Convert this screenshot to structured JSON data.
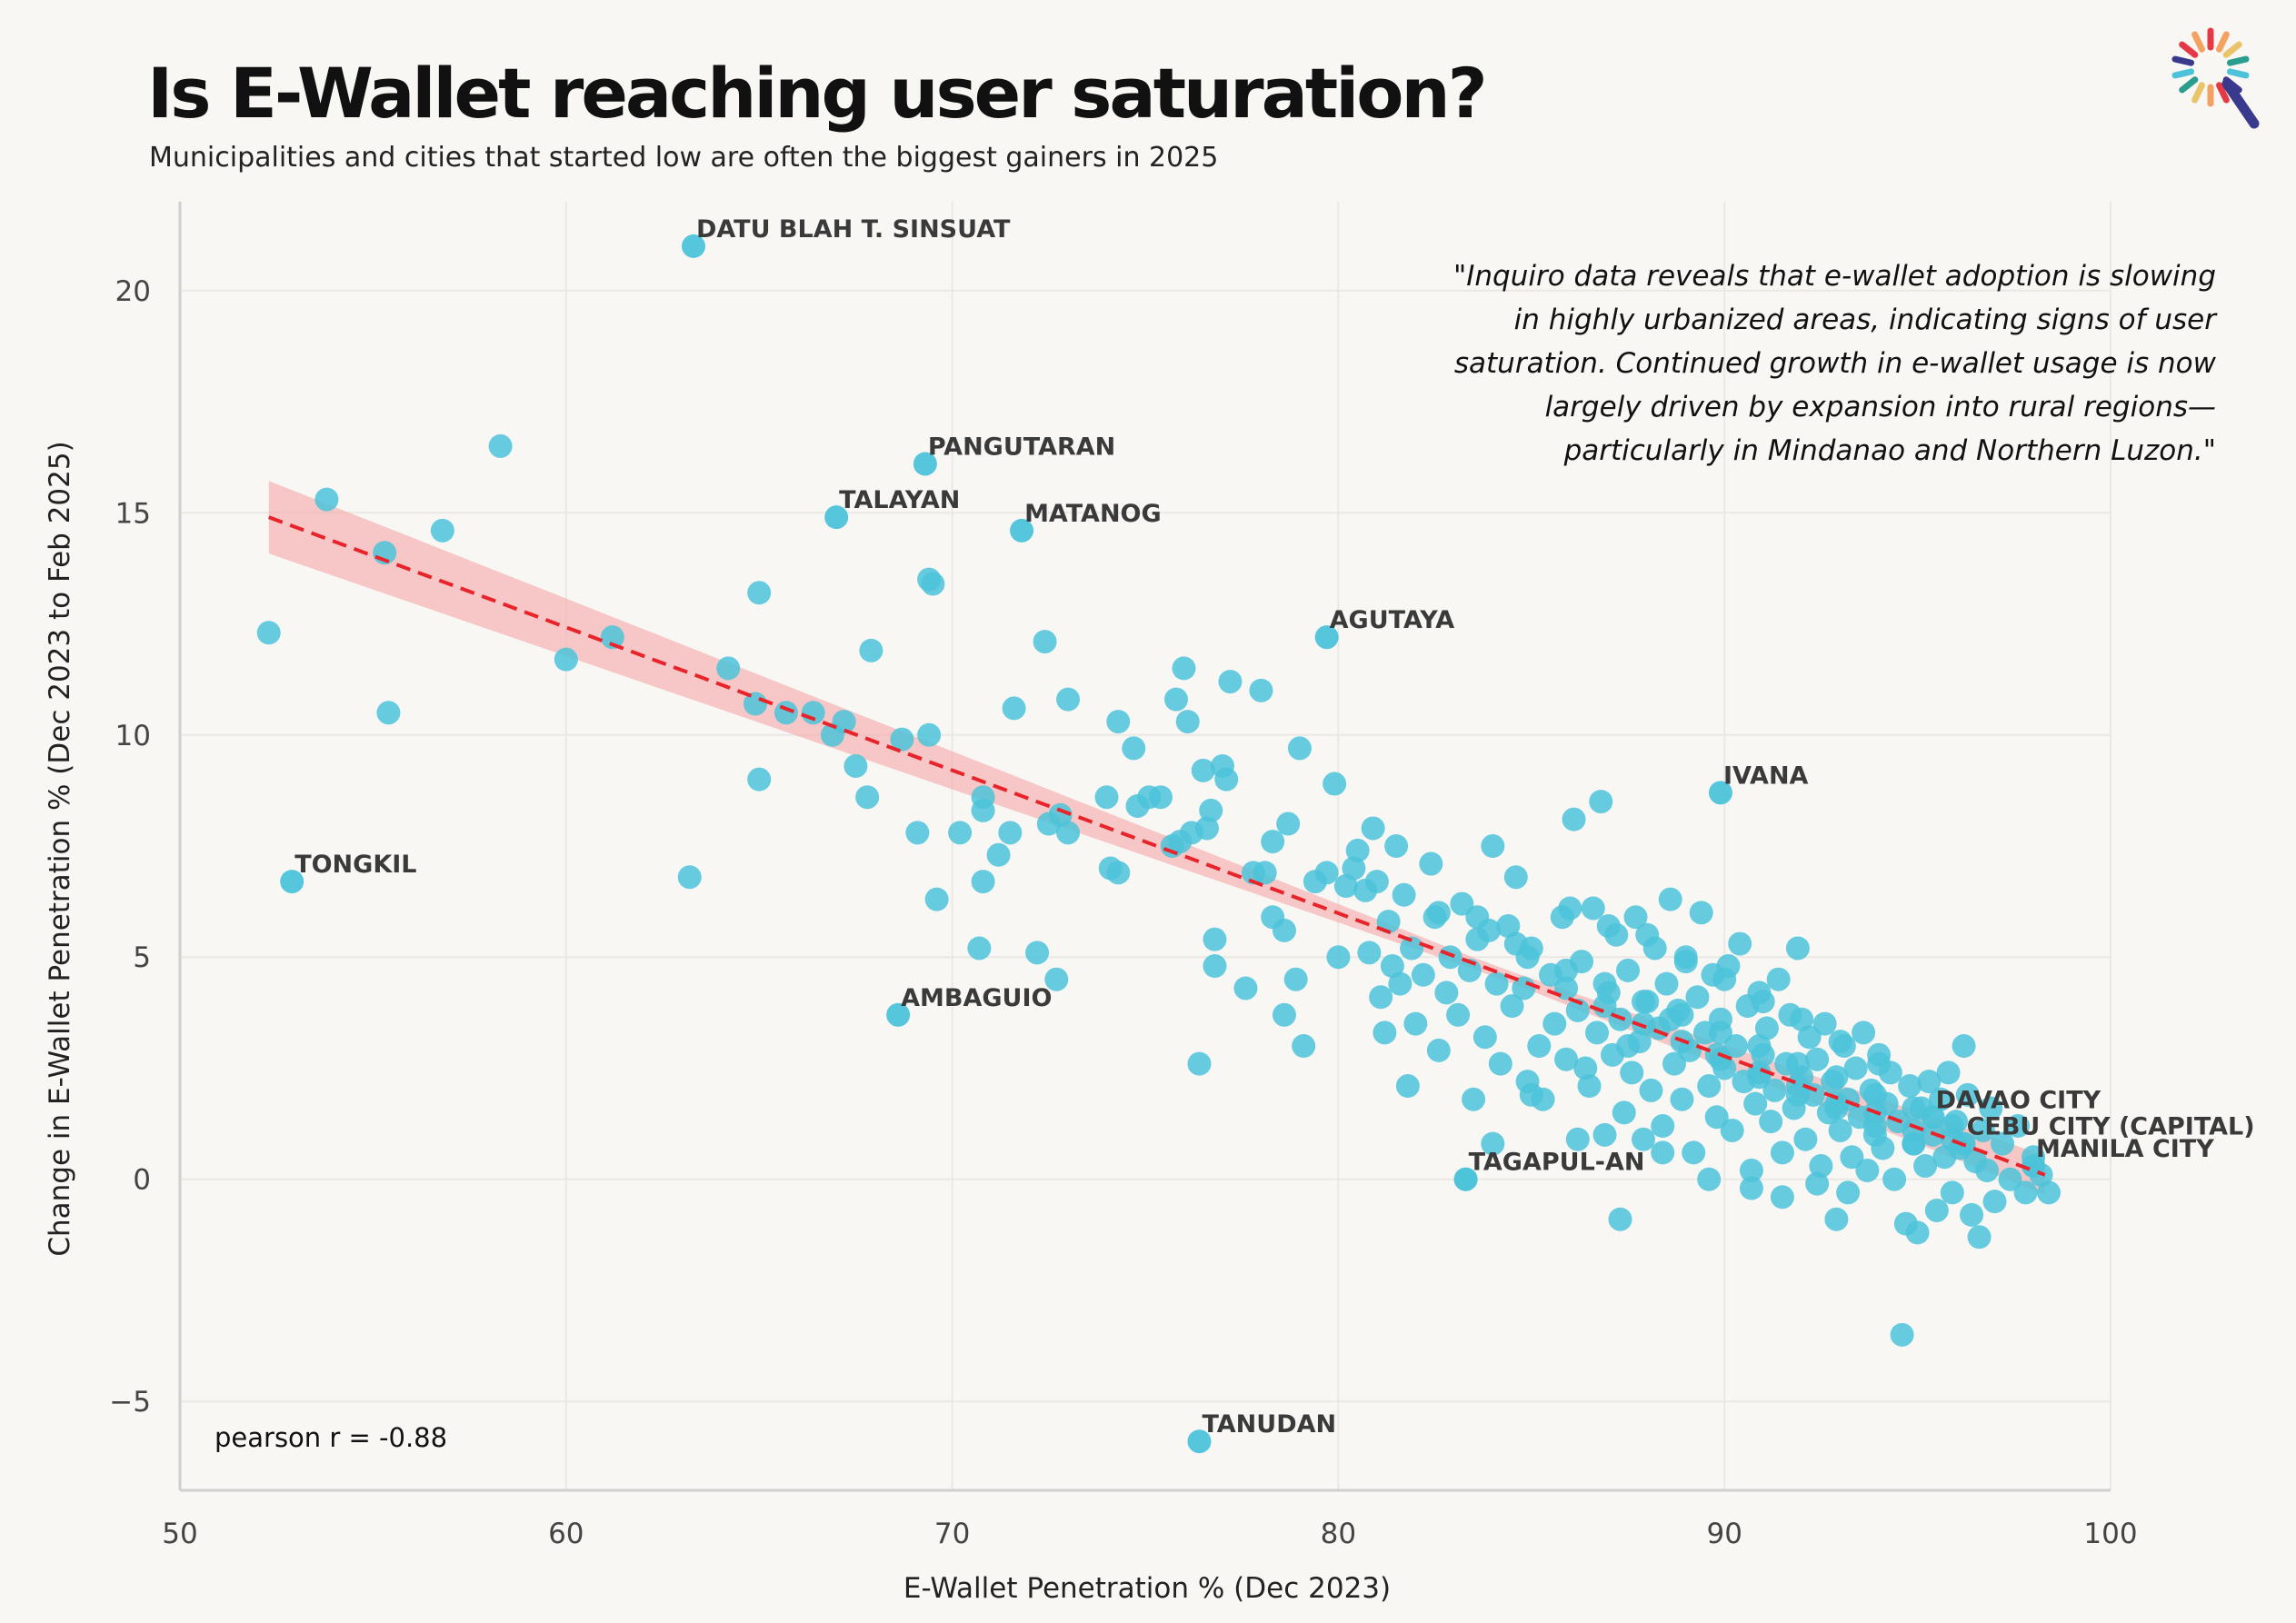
{
  "header": {
    "title": "Is E-Wallet reaching user saturation?",
    "subtitle": "Municipalities and cities that started low are often the biggest gainers in 2025"
  },
  "logo_colors": [
    "#e63946",
    "#f4a261",
    "#e9c46a",
    "#2a9d8f",
    "#4cc3d9",
    "#3a3a8c"
  ],
  "quote": "\"Inquiro data reveals that e-wallet adoption is slowing\nin highly urbanized areas, indicating signs of user\nsaturation. Continued growth in e-wallet usage is now\nlargely driven by expansion into rural regions—\nparticularly in Mindanao and Northern Luzon.\"",
  "stats": {
    "pearson": "pearson r = -0.88"
  },
  "chart_data": {
    "type": "scatter",
    "xlabel": "E-Wallet Penetration % (Dec 2023)",
    "ylabel": "Change in E-Wallet Penetration % (Dec 2023 to Feb 2025)",
    "xlim": [
      50,
      100
    ],
    "ylim": [
      -7,
      22
    ],
    "xticks": [
      50,
      60,
      70,
      80,
      90,
      100
    ],
    "yticks": [
      -5,
      0,
      5,
      10,
      15,
      20
    ],
    "grid": true,
    "point_color": "#4cc3d9",
    "trend_color": "#e8232a",
    "band_color": "#f4a0a0",
    "trend": {
      "x0": 52.3,
      "y0": 14.9,
      "x1": 98.3,
      "y1": 0.1
    },
    "labeled_points": [
      {
        "name": "DATU BLAH T. SINSUAT",
        "x": 63.3,
        "y": 21.0
      },
      {
        "name": "PANGUTARAN",
        "x": 69.3,
        "y": 16.1
      },
      {
        "name": "TALAYAN",
        "x": 67.0,
        "y": 14.9
      },
      {
        "name": "MATANOG",
        "x": 71.8,
        "y": 14.6
      },
      {
        "name": "AGUTAYA",
        "x": 79.7,
        "y": 12.2
      },
      {
        "name": "IVANA",
        "x": 89.9,
        "y": 8.7
      },
      {
        "name": "TONGKIL",
        "x": 52.9,
        "y": 6.7
      },
      {
        "name": "AMBAGUIO",
        "x": 68.6,
        "y": 3.7
      },
      {
        "name": "DAVAO CITY",
        "x": 95.4,
        "y": 1.4
      },
      {
        "name": "CEBU CITY (CAPITAL)",
        "x": 96.2,
        "y": 0.8
      },
      {
        "name": "MANILA CITY",
        "x": 98.0,
        "y": 0.3
      },
      {
        "name": "TAGAPUL-AN",
        "x": 83.3,
        "y": 0.0
      },
      {
        "name": "TANUDAN",
        "x": 76.4,
        "y": -5.9
      }
    ],
    "points": [
      [
        52.3,
        12.3
      ],
      [
        53.8,
        15.3
      ],
      [
        55.3,
        14.1
      ],
      [
        55.4,
        10.5
      ],
      [
        56.8,
        14.6
      ],
      [
        58.3,
        16.5
      ],
      [
        60.0,
        11.7
      ],
      [
        61.2,
        12.2
      ],
      [
        63.2,
        6.8
      ],
      [
        64.2,
        11.5
      ],
      [
        64.9,
        10.7
      ],
      [
        65.0,
        13.2
      ],
      [
        65.0,
        9.0
      ],
      [
        65.7,
        10.5
      ],
      [
        66.4,
        10.5
      ],
      [
        66.9,
        10.0
      ],
      [
        67.2,
        10.3
      ],
      [
        67.5,
        9.3
      ],
      [
        67.8,
        8.6
      ],
      [
        67.9,
        11.9
      ],
      [
        68.7,
        9.9
      ],
      [
        69.1,
        7.8
      ],
      [
        69.4,
        10.0
      ],
      [
        69.5,
        13.4
      ],
      [
        69.4,
        13.5
      ],
      [
        69.6,
        6.3
      ],
      [
        70.2,
        7.8
      ],
      [
        70.7,
        5.2
      ],
      [
        70.8,
        8.3
      ],
      [
        70.8,
        8.6
      ],
      [
        70.8,
        6.7
      ],
      [
        71.2,
        7.3
      ],
      [
        71.5,
        7.8
      ],
      [
        71.6,
        10.6
      ],
      [
        72.2,
        5.1
      ],
      [
        72.4,
        12.1
      ],
      [
        72.5,
        8.0
      ],
      [
        72.7,
        4.5
      ],
      [
        72.8,
        8.2
      ],
      [
        73.0,
        7.8
      ],
      [
        73.0,
        10.8
      ],
      [
        74.0,
        8.6
      ],
      [
        74.1,
        7.0
      ],
      [
        74.3,
        6.9
      ],
      [
        74.3,
        10.3
      ],
      [
        74.7,
        9.7
      ],
      [
        74.8,
        8.4
      ],
      [
        75.1,
        8.6
      ],
      [
        75.4,
        8.6
      ],
      [
        75.7,
        7.5
      ],
      [
        75.8,
        10.8
      ],
      [
        75.9,
        7.6
      ],
      [
        76.0,
        11.5
      ],
      [
        76.1,
        10.3
      ],
      [
        76.2,
        7.8
      ],
      [
        76.4,
        2.6
      ],
      [
        76.5,
        9.2
      ],
      [
        76.6,
        7.9
      ],
      [
        76.7,
        8.3
      ],
      [
        76.8,
        4.8
      ],
      [
        76.8,
        5.4
      ],
      [
        77.0,
        9.3
      ],
      [
        77.1,
        9.0
      ],
      [
        77.2,
        11.2
      ],
      [
        77.6,
        4.3
      ],
      [
        77.8,
        6.9
      ],
      [
        78.0,
        11.0
      ],
      [
        78.1,
        6.9
      ],
      [
        78.3,
        7.6
      ],
      [
        78.3,
        5.9
      ],
      [
        78.6,
        5.6
      ],
      [
        78.6,
        3.7
      ],
      [
        78.7,
        8.0
      ],
      [
        78.9,
        4.5
      ],
      [
        79.0,
        9.7
      ],
      [
        79.1,
        3.0
      ],
      [
        79.4,
        6.7
      ],
      [
        79.7,
        6.9
      ],
      [
        79.9,
        8.9
      ],
      [
        80.0,
        5.0
      ],
      [
        80.2,
        6.6
      ],
      [
        80.4,
        7.0
      ],
      [
        80.5,
        7.4
      ],
      [
        80.7,
        6.5
      ],
      [
        80.8,
        5.1
      ],
      [
        80.9,
        7.9
      ],
      [
        81.0,
        6.7
      ],
      [
        81.1,
        4.1
      ],
      [
        81.2,
        3.3
      ],
      [
        81.3,
        5.8
      ],
      [
        81.4,
        4.8
      ],
      [
        81.5,
        7.5
      ],
      [
        81.6,
        4.4
      ],
      [
        81.7,
        6.4
      ],
      [
        81.8,
        2.1
      ],
      [
        81.9,
        5.2
      ],
      [
        82.0,
        3.5
      ],
      [
        82.2,
        4.6
      ],
      [
        82.4,
        7.1
      ],
      [
        82.5,
        5.9
      ],
      [
        82.6,
        2.9
      ],
      [
        82.8,
        4.2
      ],
      [
        82.9,
        5.0
      ],
      [
        83.1,
        3.7
      ],
      [
        83.2,
        6.2
      ],
      [
        83.4,
        4.7
      ],
      [
        83.5,
        1.8
      ],
      [
        83.6,
        5.4
      ],
      [
        83.8,
        3.2
      ],
      [
        84.0,
        7.5
      ],
      [
        84.1,
        4.4
      ],
      [
        84.2,
        2.6
      ],
      [
        84.4,
        5.7
      ],
      [
        84.5,
        3.9
      ],
      [
        84.6,
        6.8
      ],
      [
        84.8,
        4.3
      ],
      [
        84.9,
        2.2
      ],
      [
        85.0,
        5.2
      ],
      [
        85.2,
        3.0
      ],
      [
        85.3,
        1.8
      ],
      [
        85.5,
        4.6
      ],
      [
        85.6,
        3.5
      ],
      [
        85.8,
        5.9
      ],
      [
        85.9,
        2.7
      ],
      [
        86.1,
        8.1
      ],
      [
        86.2,
        3.8
      ],
      [
        86.3,
        4.9
      ],
      [
        86.5,
        2.1
      ],
      [
        86.6,
        6.1
      ],
      [
        86.7,
        3.3
      ],
      [
        86.8,
        8.5
      ],
      [
        86.9,
        1.0
      ],
      [
        87.0,
        4.2
      ],
      [
        87.1,
        2.8
      ],
      [
        87.2,
        5.5
      ],
      [
        87.3,
        3.6
      ],
      [
        87.4,
        1.5
      ],
      [
        87.5,
        4.7
      ],
      [
        87.6,
        2.4
      ],
      [
        87.7,
        5.9
      ],
      [
        87.8,
        3.1
      ],
      [
        87.9,
        0.9
      ],
      [
        88.0,
        4.0
      ],
      [
        88.1,
        2.0
      ],
      [
        88.2,
        5.2
      ],
      [
        88.3,
        3.4
      ],
      [
        88.4,
        1.2
      ],
      [
        88.5,
        4.4
      ],
      [
        88.6,
        6.3
      ],
      [
        88.7,
        2.6
      ],
      [
        88.8,
        3.8
      ],
      [
        88.9,
        1.8
      ],
      [
        89.0,
        5.0
      ],
      [
        89.1,
        2.9
      ],
      [
        89.2,
        0.6
      ],
      [
        89.3,
        4.1
      ],
      [
        89.4,
        6.0
      ],
      [
        89.5,
        3.3
      ],
      [
        89.6,
        2.1
      ],
      [
        89.7,
        4.6
      ],
      [
        89.8,
        1.4
      ],
      [
        89.9,
        3.6
      ],
      [
        90.0,
        2.5
      ],
      [
        90.1,
        4.8
      ],
      [
        90.2,
        1.1
      ],
      [
        90.3,
        3.0
      ],
      [
        90.4,
        5.3
      ],
      [
        90.5,
        2.2
      ],
      [
        90.6,
        3.9
      ],
      [
        90.7,
        0.2
      ],
      [
        90.8,
        1.7
      ],
      [
        90.9,
        4.2
      ],
      [
        91.0,
        2.8
      ],
      [
        91.1,
        3.4
      ],
      [
        91.2,
        1.3
      ],
      [
        91.3,
        2.0
      ],
      [
        91.4,
        4.5
      ],
      [
        91.5,
        0.6
      ],
      [
        91.6,
        2.6
      ],
      [
        91.7,
        3.7
      ],
      [
        91.8,
        1.6
      ],
      [
        91.9,
        5.2
      ],
      [
        92.0,
        2.3
      ],
      [
        92.1,
        0.9
      ],
      [
        92.2,
        3.2
      ],
      [
        92.3,
        1.9
      ],
      [
        92.4,
        2.7
      ],
      [
        92.5,
        0.3
      ],
      [
        92.6,
        3.5
      ],
      [
        92.7,
        1.5
      ],
      [
        92.8,
        2.2
      ],
      [
        92.9,
        -0.9
      ],
      [
        93.0,
        1.1
      ],
      [
        93.1,
        3.0
      ],
      [
        93.2,
        1.8
      ],
      [
        93.3,
        0.5
      ],
      [
        93.4,
        2.5
      ],
      [
        93.5,
        1.4
      ],
      [
        93.6,
        3.3
      ],
      [
        93.7,
        0.2
      ],
      [
        93.8,
        2.0
      ],
      [
        93.9,
        1.0
      ],
      [
        94.0,
        2.8
      ],
      [
        94.1,
        0.7
      ],
      [
        94.2,
        1.7
      ],
      [
        94.3,
        2.4
      ],
      [
        94.4,
        0.0
      ],
      [
        94.5,
        1.3
      ],
      [
        94.6,
        -3.5
      ],
      [
        94.7,
        -1.0
      ],
      [
        94.8,
        2.1
      ],
      [
        94.9,
        0.8
      ],
      [
        95.0,
        -1.2
      ],
      [
        95.1,
        1.6
      ],
      [
        95.2,
        0.3
      ],
      [
        95.3,
        2.2
      ],
      [
        95.4,
        1.0
      ],
      [
        95.5,
        -0.7
      ],
      [
        95.6,
        1.8
      ],
      [
        95.7,
        0.5
      ],
      [
        95.8,
        2.4
      ],
      [
        95.9,
        -0.3
      ],
      [
        96.0,
        1.3
      ],
      [
        96.1,
        0.7
      ],
      [
        96.2,
        3.0
      ],
      [
        96.3,
        1.9
      ],
      [
        96.4,
        -0.8
      ],
      [
        96.5,
        0.4
      ],
      [
        96.6,
        -1.3
      ],
      [
        96.7,
        1.1
      ],
      [
        96.8,
        0.2
      ],
      [
        96.9,
        1.6
      ],
      [
        97.0,
        -0.5
      ],
      [
        97.2,
        0.8
      ],
      [
        97.4,
        0.0
      ],
      [
        97.6,
        1.2
      ],
      [
        97.8,
        -0.3
      ],
      [
        98.0,
        0.5
      ],
      [
        98.2,
        0.1
      ],
      [
        98.4,
        -0.3
      ],
      [
        83.3,
        0.0
      ],
      [
        84.0,
        0.8
      ],
      [
        86.2,
        0.9
      ],
      [
        87.3,
        -0.9
      ],
      [
        88.4,
        0.6
      ],
      [
        89.6,
        0.0
      ],
      [
        90.7,
        -0.2
      ],
      [
        91.5,
        -0.4
      ],
      [
        92.4,
        -0.1
      ],
      [
        93.2,
        -0.3
      ],
      [
        85.0,
        1.9
      ],
      [
        86.4,
        2.5
      ],
      [
        87.5,
        3.0
      ],
      [
        88.6,
        3.6
      ],
      [
        89.8,
        2.8
      ],
      [
        90.9,
        2.4
      ],
      [
        91.9,
        2.1
      ],
      [
        92.9,
        1.7
      ],
      [
        93.9,
        1.5
      ],
      [
        94.9,
        1.1
      ],
      [
        95.9,
        0.9
      ],
      [
        85.9,
        4.3
      ],
      [
        86.9,
        3.9
      ],
      [
        87.9,
        3.5
      ],
      [
        88.9,
        3.1
      ],
      [
        89.9,
        2.7
      ],
      [
        90.9,
        2.3
      ],
      [
        91.9,
        1.9
      ],
      [
        92.9,
        1.6
      ],
      [
        93.9,
        1.2
      ],
      [
        94.9,
        0.8
      ],
      [
        83.9,
        5.6
      ],
      [
        84.9,
        5.0
      ],
      [
        85.9,
        4.7
      ],
      [
        86.9,
        4.4
      ],
      [
        87.9,
        4.0
      ],
      [
        88.9,
        3.7
      ],
      [
        89.9,
        3.3
      ],
      [
        90.9,
        3.0
      ],
      [
        91.9,
        2.6
      ],
      [
        92.9,
        2.3
      ],
      [
        93.9,
        1.9
      ],
      [
        94.9,
        1.6
      ],
      [
        95.9,
        1.2
      ],
      [
        82.6,
        6.0
      ],
      [
        83.6,
        5.9
      ],
      [
        84.6,
        5.3
      ],
      [
        86.0,
        6.1
      ],
      [
        87.0,
        5.7
      ],
      [
        88.0,
        5.5
      ],
      [
        89.0,
        4.9
      ],
      [
        90.0,
        4.5
      ],
      [
        91.0,
        4.0
      ],
      [
        92.0,
        3.6
      ],
      [
        93.0,
        3.1
      ],
      [
        94.0,
        2.6
      ]
    ]
  }
}
